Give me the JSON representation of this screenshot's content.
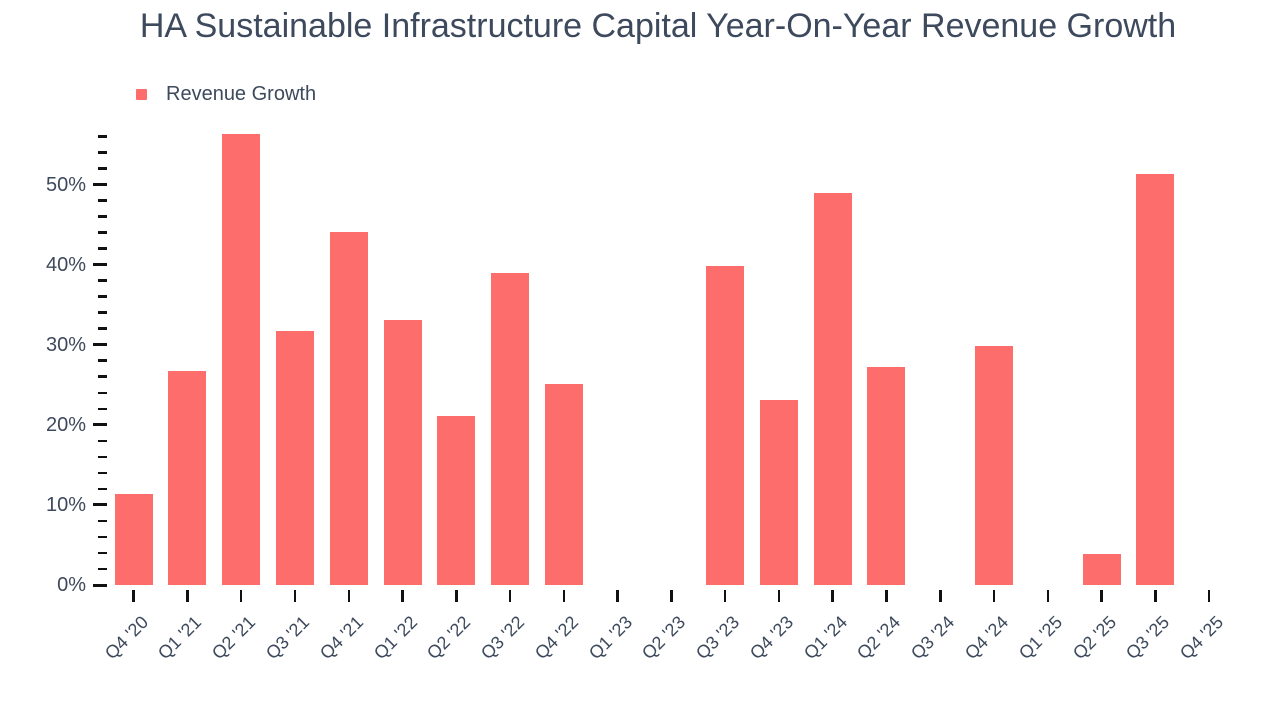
{
  "title": "HA Sustainable Infrastructure Capital Year-On-Year Revenue Growth",
  "legend": {
    "label": "Revenue Growth"
  },
  "colors": {
    "bar": "#FC6D6B",
    "text": "#3D495C",
    "tick": "#111111",
    "background": "#FFFFFF"
  },
  "chart_data": {
    "type": "bar",
    "title": "HA Sustainable Infrastructure Capital Year-On-Year Revenue Growth",
    "series_name": "Revenue Growth",
    "categories": [
      "Q4 '20",
      "Q1 '21",
      "Q2 '21",
      "Q3 '21",
      "Q4 '21",
      "Q1 '22",
      "Q2 '22",
      "Q3 '22",
      "Q4 '22",
      "Q1 '23",
      "Q2 '23",
      "Q3 '23",
      "Q4 '23",
      "Q1 '24",
      "Q2 '24",
      "Q3 '24",
      "Q4 '24",
      "Q1 '25",
      "Q2 '25",
      "Q3 '25",
      "Q4 '25"
    ],
    "values": [
      11.4,
      26.7,
      56.3,
      31.7,
      44.1,
      33.1,
      21.1,
      39.0,
      25.1,
      null,
      null,
      39.8,
      23.1,
      48.9,
      27.2,
      null,
      29.8,
      null,
      3.9,
      51.3,
      null
    ],
    "unit": "%",
    "xlabel": "",
    "ylabel": "",
    "ylim": [
      0,
      57
    ],
    "y_major_step": 10,
    "y_minor_step": 2,
    "ytick_labels": [
      "0%",
      "10%",
      "20%",
      "30%",
      "40%",
      "50%"
    ],
    "grid": false,
    "legend_position": "top-left"
  }
}
